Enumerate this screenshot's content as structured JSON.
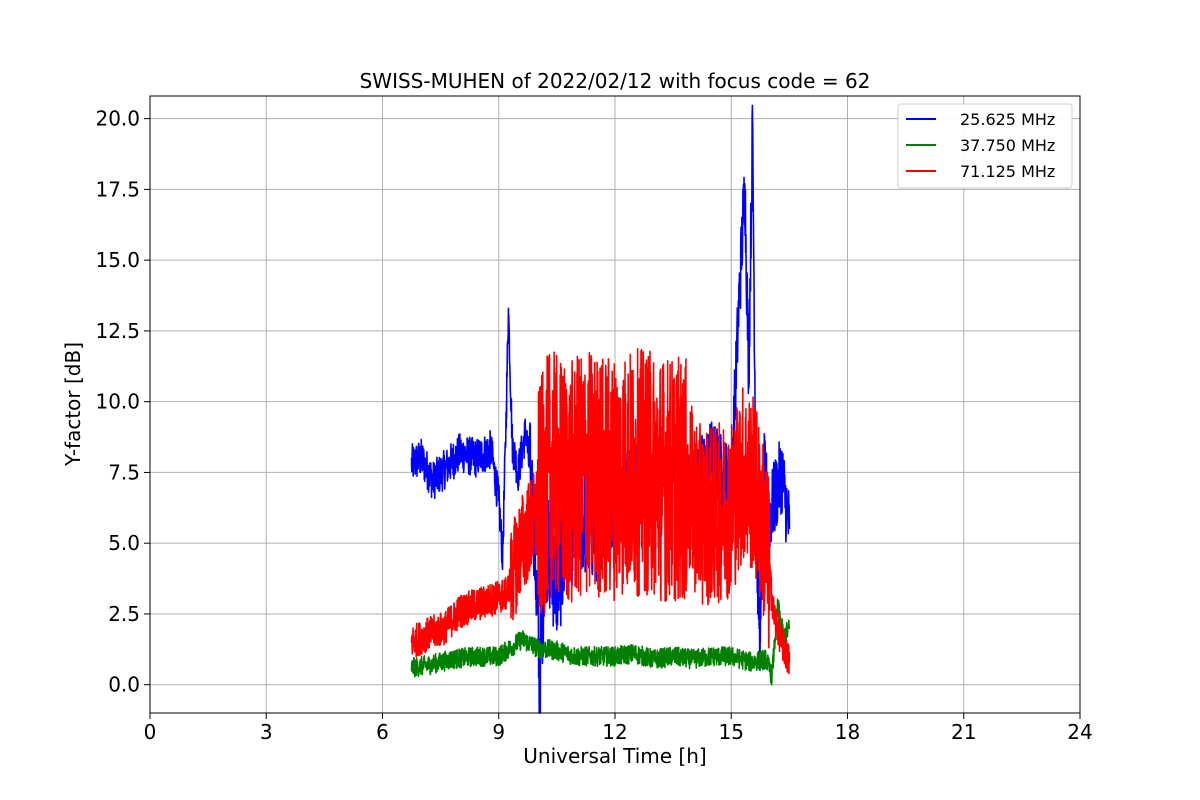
{
  "chart_data": {
    "type": "line",
    "title": "SWISS-MUHEN of 2022/02/12 with focus code = 62",
    "xlabel": "Universal Time [h]",
    "ylabel": "Y-factor [dB]",
    "xlim": [
      0,
      24
    ],
    "ylim": [
      -1.0,
      20.8
    ],
    "x_ticks": [
      0,
      3,
      6,
      9,
      12,
      15,
      18,
      21,
      24
    ],
    "x_tick_labels": [
      "0",
      "3",
      "6",
      "9",
      "12",
      "15",
      "18",
      "21",
      "24"
    ],
    "y_ticks": [
      0.0,
      2.5,
      5.0,
      7.5,
      10.0,
      12.5,
      15.0,
      17.5,
      20.0
    ],
    "y_tick_labels": [
      "0.0",
      "2.5",
      "5.0",
      "7.5",
      "10.0",
      "12.5",
      "15.0",
      "17.5",
      "20.0"
    ],
    "grid": true,
    "legend_position": "top-right",
    "series": [
      {
        "name": "25.625 MHz",
        "color": "#0000ff",
        "points": [
          [
            6.75,
            7.8
          ],
          [
            7.0,
            8.0
          ],
          [
            7.3,
            7.2
          ],
          [
            7.6,
            7.6
          ],
          [
            8.0,
            8.2
          ],
          [
            8.4,
            8.0
          ],
          [
            8.8,
            8.3
          ],
          [
            9.0,
            6.5
          ],
          [
            9.1,
            4.5
          ],
          [
            9.2,
            10.0
          ],
          [
            9.25,
            13.3
          ],
          [
            9.35,
            8.5
          ],
          [
            9.5,
            7.5
          ],
          [
            9.7,
            9.0
          ],
          [
            9.9,
            6.0
          ],
          [
            10.0,
            2.5
          ],
          [
            10.05,
            0.0
          ],
          [
            10.2,
            5.0
          ],
          [
            10.5,
            3.5
          ],
          [
            11.0,
            6.0
          ],
          [
            11.5,
            5.5
          ],
          [
            12.0,
            7.0
          ],
          [
            12.5,
            8.0
          ],
          [
            13.0,
            7.5
          ],
          [
            13.5,
            7.8
          ],
          [
            14.0,
            7.0
          ],
          [
            14.5,
            8.0
          ],
          [
            15.0,
            7.0
          ],
          [
            15.2,
            13.5
          ],
          [
            15.35,
            17.7
          ],
          [
            15.45,
            11.0
          ],
          [
            15.55,
            19.8
          ],
          [
            15.65,
            5.0
          ],
          [
            15.75,
            1.5
          ],
          [
            15.85,
            7.5
          ],
          [
            16.0,
            6.0
          ],
          [
            16.3,
            7.5
          ],
          [
            16.5,
            5.5
          ]
        ]
      },
      {
        "name": "37.750 MHz",
        "color": "#008000",
        "points": [
          [
            6.75,
            0.6
          ],
          [
            7.2,
            0.7
          ],
          [
            7.8,
            0.9
          ],
          [
            8.4,
            1.0
          ],
          [
            9.0,
            1.0
          ],
          [
            9.6,
            1.6
          ],
          [
            10.0,
            1.3
          ],
          [
            10.5,
            1.2
          ],
          [
            11.0,
            1.0
          ],
          [
            11.5,
            1.0
          ],
          [
            12.0,
            1.0
          ],
          [
            12.5,
            1.1
          ],
          [
            13.0,
            0.9
          ],
          [
            13.5,
            1.0
          ],
          [
            14.0,
            0.9
          ],
          [
            14.5,
            1.0
          ],
          [
            15.0,
            1.0
          ],
          [
            15.5,
            0.8
          ],
          [
            15.9,
            0.9
          ],
          [
            16.05,
            0.3
          ],
          [
            16.2,
            2.8
          ],
          [
            16.35,
            1.7
          ],
          [
            16.5,
            2.0
          ]
        ]
      },
      {
        "name": "71.125 MHz",
        "color": "#ff0000",
        "points": [
          [
            6.75,
            1.5
          ],
          [
            7.2,
            1.8
          ],
          [
            7.6,
            2.0
          ],
          [
            8.0,
            2.6
          ],
          [
            8.4,
            2.8
          ],
          [
            8.8,
            3.0
          ],
          [
            9.2,
            3.2
          ],
          [
            9.6,
            5.0
          ],
          [
            10.0,
            6.0
          ],
          [
            10.3,
            7.5
          ],
          [
            10.8,
            7.0
          ],
          [
            11.3,
            7.5
          ],
          [
            11.8,
            7.3
          ],
          [
            12.3,
            7.5
          ],
          [
            12.8,
            7.5
          ],
          [
            13.3,
            7.3
          ],
          [
            13.8,
            7.2
          ],
          [
            14.2,
            6.0
          ],
          [
            14.6,
            6.0
          ],
          [
            15.0,
            6.3
          ],
          [
            15.3,
            7.5
          ],
          [
            15.6,
            7.0
          ],
          [
            15.9,
            5.0
          ],
          [
            16.1,
            2.5
          ],
          [
            16.3,
            1.5
          ],
          [
            16.5,
            0.8
          ]
        ]
      }
    ]
  }
}
